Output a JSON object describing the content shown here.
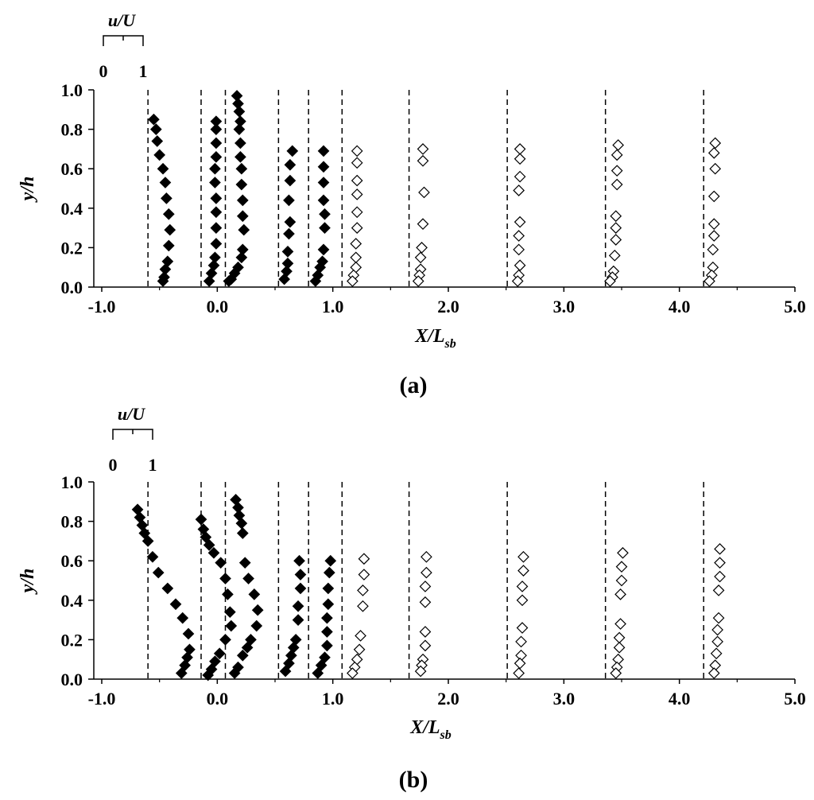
{
  "chart_data": [
    {
      "panel": "(a)",
      "type": "scatter",
      "xlabel": "X/L",
      "xlabel_sub": "sb",
      "ylabel": "y/h",
      "xlim": [
        -1.0,
        5.0
      ],
      "ylim": [
        0.0,
        1.0
      ],
      "xticks": [
        "-1.0",
        "0.0",
        "1.0",
        "2.0",
        "3.0",
        "4.0",
        "5.0"
      ],
      "yticks": [
        "0.0",
        "0.2",
        "0.4",
        "0.6",
        "0.8",
        "1.0"
      ],
      "scale_bar": {
        "title": "u/U",
        "left": "0",
        "right": "1"
      },
      "section_positions": [
        -0.6,
        -0.14,
        0.07,
        0.53,
        0.79,
        1.08,
        1.66,
        2.51,
        3.36,
        4.21
      ],
      "series": [
        {
          "style": "filled-diamond",
          "points": [
            [
              -0.55,
              0.85
            ],
            [
              -0.53,
              0.8
            ],
            [
              -0.52,
              0.74
            ],
            [
              -0.5,
              0.67
            ],
            [
              -0.47,
              0.6
            ],
            [
              -0.45,
              0.53
            ],
            [
              -0.44,
              0.45
            ],
            [
              -0.42,
              0.37
            ],
            [
              -0.41,
              0.29
            ],
            [
              -0.42,
              0.21
            ],
            [
              -0.43,
              0.13
            ],
            [
              -0.45,
              0.09
            ],
            [
              -0.46,
              0.05
            ],
            [
              -0.47,
              0.03
            ]
          ]
        },
        {
          "style": "filled-diamond",
          "points": [
            [
              -0.01,
              0.84
            ],
            [
              -0.01,
              0.8
            ],
            [
              -0.01,
              0.73
            ],
            [
              -0.01,
              0.66
            ],
            [
              -0.02,
              0.6
            ],
            [
              -0.02,
              0.53
            ],
            [
              -0.01,
              0.45
            ],
            [
              -0.01,
              0.38
            ],
            [
              -0.01,
              0.3
            ],
            [
              -0.01,
              0.22
            ],
            [
              -0.02,
              0.15
            ],
            [
              -0.03,
              0.11
            ],
            [
              -0.05,
              0.07
            ],
            [
              -0.07,
              0.03
            ]
          ]
        },
        {
          "style": "filled-diamond",
          "points": [
            [
              0.17,
              0.97
            ],
            [
              0.18,
              0.93
            ],
            [
              0.19,
              0.89
            ],
            [
              0.2,
              0.84
            ],
            [
              0.19,
              0.8
            ],
            [
              0.2,
              0.73
            ],
            [
              0.2,
              0.66
            ],
            [
              0.21,
              0.6
            ],
            [
              0.21,
              0.52
            ],
            [
              0.22,
              0.44
            ],
            [
              0.22,
              0.36
            ],
            [
              0.23,
              0.29
            ],
            [
              0.22,
              0.19
            ],
            [
              0.21,
              0.15
            ],
            [
              0.18,
              0.1
            ],
            [
              0.15,
              0.07
            ],
            [
              0.12,
              0.04
            ],
            [
              0.1,
              0.03
            ]
          ]
        },
        {
          "style": "filled-diamond",
          "points": [
            [
              0.65,
              0.69
            ],
            [
              0.63,
              0.62
            ],
            [
              0.63,
              0.54
            ],
            [
              0.62,
              0.44
            ],
            [
              0.63,
              0.33
            ],
            [
              0.62,
              0.27
            ],
            [
              0.61,
              0.18
            ],
            [
              0.61,
              0.12
            ],
            [
              0.6,
              0.08
            ],
            [
              0.58,
              0.04
            ]
          ]
        },
        {
          "style": "filled-diamond",
          "points": [
            [
              0.92,
              0.69
            ],
            [
              0.92,
              0.61
            ],
            [
              0.92,
              0.53
            ],
            [
              0.92,
              0.44
            ],
            [
              0.93,
              0.37
            ],
            [
              0.93,
              0.3
            ],
            [
              0.92,
              0.19
            ],
            [
              0.91,
              0.13
            ],
            [
              0.89,
              0.1
            ],
            [
              0.87,
              0.06
            ],
            [
              0.85,
              0.03
            ]
          ]
        },
        {
          "style": "open-diamond",
          "points": [
            [
              1.21,
              0.69
            ],
            [
              1.21,
              0.63
            ],
            [
              1.21,
              0.54
            ],
            [
              1.21,
              0.47
            ],
            [
              1.21,
              0.38
            ],
            [
              1.21,
              0.3
            ],
            [
              1.2,
              0.22
            ],
            [
              1.2,
              0.15
            ],
            [
              1.2,
              0.1
            ],
            [
              1.18,
              0.06
            ],
            [
              1.17,
              0.03
            ]
          ]
        },
        {
          "style": "open-diamond",
          "points": [
            [
              1.78,
              0.7
            ],
            [
              1.78,
              0.64
            ],
            [
              1.79,
              0.48
            ],
            [
              1.78,
              0.32
            ],
            [
              1.77,
              0.2
            ],
            [
              1.76,
              0.15
            ],
            [
              1.76,
              0.09
            ],
            [
              1.75,
              0.06
            ],
            [
              1.74,
              0.03
            ]
          ]
        },
        {
          "style": "open-diamond",
          "points": [
            [
              2.62,
              0.7
            ],
            [
              2.62,
              0.65
            ],
            [
              2.62,
              0.56
            ],
            [
              2.61,
              0.49
            ],
            [
              2.62,
              0.33
            ],
            [
              2.61,
              0.26
            ],
            [
              2.61,
              0.19
            ],
            [
              2.62,
              0.11
            ],
            [
              2.61,
              0.06
            ],
            [
              2.6,
              0.03
            ]
          ]
        },
        {
          "style": "open-diamond",
          "points": [
            [
              3.47,
              0.72
            ],
            [
              3.46,
              0.67
            ],
            [
              3.46,
              0.59
            ],
            [
              3.46,
              0.52
            ],
            [
              3.45,
              0.36
            ],
            [
              3.45,
              0.3
            ],
            [
              3.45,
              0.24
            ],
            [
              3.44,
              0.16
            ],
            [
              3.43,
              0.08
            ],
            [
              3.42,
              0.05
            ],
            [
              3.4,
              0.03
            ]
          ]
        },
        {
          "style": "open-diamond",
          "points": [
            [
              4.31,
              0.73
            ],
            [
              4.3,
              0.68
            ],
            [
              4.31,
              0.6
            ],
            [
              4.3,
              0.46
            ],
            [
              4.3,
              0.32
            ],
            [
              4.3,
              0.26
            ],
            [
              4.29,
              0.19
            ],
            [
              4.29,
              0.1
            ],
            [
              4.28,
              0.06
            ],
            [
              4.26,
              0.03
            ]
          ]
        }
      ]
    },
    {
      "panel": "(b)",
      "type": "scatter",
      "xlabel": "X/L",
      "xlabel_sub": "sb",
      "ylabel": "y/h",
      "xlim": [
        -1.0,
        5.0
      ],
      "ylim": [
        0.0,
        1.0
      ],
      "xticks": [
        "-1.0",
        "0.0",
        "1.0",
        "2.0",
        "3.0",
        "4.0",
        "5.0"
      ],
      "yticks": [
        "0.0",
        "0.2",
        "0.4",
        "0.6",
        "0.8",
        "1.0"
      ],
      "scale_bar": {
        "title": "u/U",
        "left": "0",
        "right": "1"
      },
      "section_positions": [
        -0.6,
        -0.14,
        0.07,
        0.53,
        0.79,
        1.08,
        1.66,
        2.51,
        3.36,
        4.21
      ],
      "series": [
        {
          "style": "filled-diamond",
          "points": [
            [
              -0.69,
              0.86
            ],
            [
              -0.67,
              0.82
            ],
            [
              -0.65,
              0.78
            ],
            [
              -0.63,
              0.74
            ],
            [
              -0.6,
              0.7
            ],
            [
              -0.56,
              0.62
            ],
            [
              -0.51,
              0.54
            ],
            [
              -0.43,
              0.46
            ],
            [
              -0.36,
              0.38
            ],
            [
              -0.3,
              0.31
            ],
            [
              -0.25,
              0.23
            ],
            [
              -0.24,
              0.15
            ],
            [
              -0.26,
              0.11
            ],
            [
              -0.28,
              0.07
            ],
            [
              -0.31,
              0.03
            ]
          ]
        },
        {
          "style": "filled-diamond",
          "points": [
            [
              -0.14,
              0.81
            ],
            [
              -0.12,
              0.76
            ],
            [
              -0.1,
              0.72
            ],
            [
              -0.07,
              0.68
            ],
            [
              -0.03,
              0.64
            ],
            [
              0.03,
              0.59
            ],
            [
              0.07,
              0.51
            ],
            [
              0.09,
              0.43
            ],
            [
              0.11,
              0.34
            ],
            [
              0.12,
              0.27
            ],
            [
              0.07,
              0.2
            ],
            [
              0.02,
              0.13
            ],
            [
              -0.02,
              0.09
            ],
            [
              -0.05,
              0.05
            ],
            [
              -0.08,
              0.02
            ]
          ]
        },
        {
          "style": "filled-diamond",
          "points": [
            [
              0.16,
              0.91
            ],
            [
              0.18,
              0.87
            ],
            [
              0.19,
              0.83
            ],
            [
              0.21,
              0.79
            ],
            [
              0.22,
              0.74
            ],
            [
              0.24,
              0.59
            ],
            [
              0.27,
              0.51
            ],
            [
              0.32,
              0.43
            ],
            [
              0.35,
              0.35
            ],
            [
              0.34,
              0.27
            ],
            [
              0.29,
              0.2
            ],
            [
              0.26,
              0.16
            ],
            [
              0.22,
              0.12
            ],
            [
              0.18,
              0.06
            ],
            [
              0.15,
              0.03
            ]
          ]
        },
        {
          "style": "filled-diamond",
          "points": [
            [
              0.71,
              0.6
            ],
            [
              0.72,
              0.53
            ],
            [
              0.72,
              0.46
            ],
            [
              0.7,
              0.37
            ],
            [
              0.7,
              0.3
            ],
            [
              0.68,
              0.2
            ],
            [
              0.66,
              0.16
            ],
            [
              0.64,
              0.12
            ],
            [
              0.62,
              0.08
            ],
            [
              0.59,
              0.04
            ]
          ]
        },
        {
          "style": "filled-diamond",
          "points": [
            [
              0.98,
              0.6
            ],
            [
              0.97,
              0.54
            ],
            [
              0.96,
              0.46
            ],
            [
              0.96,
              0.38
            ],
            [
              0.95,
              0.31
            ],
            [
              0.95,
              0.24
            ],
            [
              0.95,
              0.17
            ],
            [
              0.93,
              0.11
            ],
            [
              0.9,
              0.07
            ],
            [
              0.87,
              0.03
            ]
          ]
        },
        {
          "style": "open-diamond",
          "points": [
            [
              1.27,
              0.61
            ],
            [
              1.27,
              0.53
            ],
            [
              1.26,
              0.45
            ],
            [
              1.26,
              0.37
            ],
            [
              1.24,
              0.22
            ],
            [
              1.23,
              0.15
            ],
            [
              1.21,
              0.1
            ],
            [
              1.19,
              0.06
            ],
            [
              1.17,
              0.03
            ]
          ]
        },
        {
          "style": "open-diamond",
          "points": [
            [
              1.81,
              0.62
            ],
            [
              1.81,
              0.54
            ],
            [
              1.8,
              0.47
            ],
            [
              1.8,
              0.39
            ],
            [
              1.8,
              0.24
            ],
            [
              1.8,
              0.17
            ],
            [
              1.78,
              0.1
            ],
            [
              1.77,
              0.07
            ],
            [
              1.76,
              0.04
            ]
          ]
        },
        {
          "style": "open-diamond",
          "points": [
            [
              2.65,
              0.62
            ],
            [
              2.65,
              0.55
            ],
            [
              2.64,
              0.47
            ],
            [
              2.64,
              0.4
            ],
            [
              2.64,
              0.26
            ],
            [
              2.63,
              0.19
            ],
            [
              2.63,
              0.12
            ],
            [
              2.62,
              0.08
            ],
            [
              2.61,
              0.03
            ]
          ]
        },
        {
          "style": "open-diamond",
          "points": [
            [
              3.51,
              0.64
            ],
            [
              3.5,
              0.57
            ],
            [
              3.5,
              0.5
            ],
            [
              3.49,
              0.43
            ],
            [
              3.49,
              0.28
            ],
            [
              3.48,
              0.21
            ],
            [
              3.48,
              0.16
            ],
            [
              3.47,
              0.1
            ],
            [
              3.46,
              0.06
            ],
            [
              3.45,
              0.03
            ]
          ]
        },
        {
          "style": "open-diamond",
          "points": [
            [
              4.35,
              0.66
            ],
            [
              4.35,
              0.59
            ],
            [
              4.35,
              0.52
            ],
            [
              4.34,
              0.45
            ],
            [
              4.34,
              0.31
            ],
            [
              4.33,
              0.25
            ],
            [
              4.33,
              0.19
            ],
            [
              4.32,
              0.13
            ],
            [
              4.31,
              0.07
            ],
            [
              4.3,
              0.03
            ]
          ]
        }
      ]
    }
  ]
}
